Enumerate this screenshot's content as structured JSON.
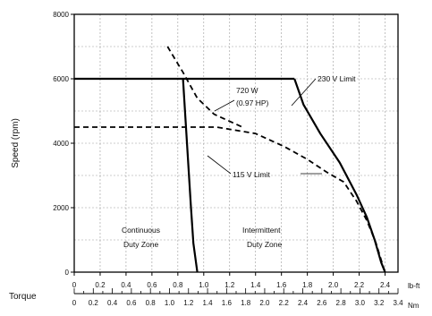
{
  "chart_data": {
    "type": "line",
    "ylabel": "Speed (rpm)",
    "xlabel": "Torque",
    "ylim": [
      0,
      8000
    ],
    "xlim": [
      0,
      2.5
    ],
    "xlim_nm": [
      0,
      3.4
    ],
    "grid": true,
    "y_ticks": [
      0,
      2000,
      4000,
      6000,
      8000
    ],
    "x_ticks_lbft": [
      "0",
      "0.2",
      "0.4",
      "0.6",
      "0.8",
      "1.0",
      "1.2",
      "1.4",
      "1.6",
      "1.8",
      "2.0",
      "2.2",
      "2.4"
    ],
    "x_unit_lbft": "lb-ft",
    "x_ticks_nm": [
      "0",
      "0.2",
      "0.4",
      "0.6",
      "0.8",
      "1.0",
      "1.2",
      "1.4",
      "1.6",
      "1.8",
      "2.0",
      "2.2",
      "2.4",
      "2.6",
      "2.8",
      "3.0",
      "3.2",
      "3.4"
    ],
    "x_unit_nm": "Nm",
    "series": [
      {
        "style": "solid",
        "x": [
          0,
          1.7
        ],
        "y": [
          6000,
          6000
        ]
      },
      {
        "style": "solid",
        "x": [
          1.7,
          1.77,
          1.9,
          2.05,
          2.18,
          2.26,
          2.32,
          2.37,
          2.4
        ],
        "y": [
          6000,
          5200,
          4300,
          3400,
          2400,
          1700,
          1000,
          300,
          0
        ]
      },
      {
        "style": "dashed",
        "x": [
          0,
          1.1,
          1.4,
          1.62,
          1.8,
          1.95,
          2.08,
          2.18,
          2.26,
          2.33,
          2.38,
          2.4
        ],
        "y": [
          4500,
          4500,
          4300,
          3900,
          3500,
          3100,
          2800,
          2200,
          1600,
          900,
          250,
          0
        ]
      },
      {
        "style": "dashed",
        "x": [
          0.72,
          0.78,
          0.84,
          0.95,
          1.08,
          1.3
        ],
        "y": [
          7000,
          6600,
          6200,
          5400,
          4900,
          4500
        ]
      },
      {
        "style": "solid",
        "x": [
          0.84,
          0.86,
          0.88,
          0.9,
          0.92,
          0.95
        ],
        "y": [
          6000,
          4700,
          3400,
          2100,
          900,
          0
        ]
      }
    ],
    "annotations": [
      {
        "text": "230 V Limit"
      },
      {
        "text": "720 W"
      },
      {
        "text": "(0.97 HP)"
      },
      {
        "text": "115 V Limit"
      },
      {
        "text": "Continuous"
      },
      {
        "text": "Duty Zone"
      },
      {
        "text": "Intermittent"
      },
      {
        "text": "Duty Zone"
      }
    ]
  }
}
